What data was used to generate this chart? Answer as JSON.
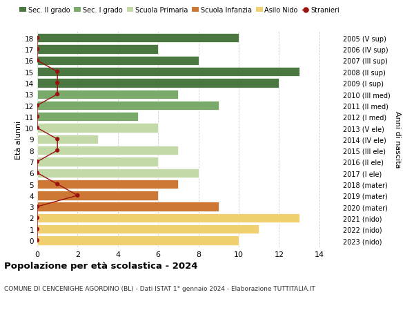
{
  "ages": [
    18,
    17,
    16,
    15,
    14,
    13,
    12,
    11,
    10,
    9,
    8,
    7,
    6,
    5,
    4,
    3,
    2,
    1,
    0
  ],
  "years": [
    "2005 (V sup)",
    "2006 (IV sup)",
    "2007 (III sup)",
    "2008 (II sup)",
    "2009 (I sup)",
    "2010 (III med)",
    "2011 (II med)",
    "2012 (I med)",
    "2013 (V ele)",
    "2014 (IV ele)",
    "2015 (III ele)",
    "2016 (II ele)",
    "2017 (I ele)",
    "2018 (mater)",
    "2019 (mater)",
    "2020 (mater)",
    "2021 (nido)",
    "2022 (nido)",
    "2023 (nido)"
  ],
  "bar_values": [
    10,
    6,
    8,
    13,
    12,
    7,
    9,
    5,
    6,
    3,
    7,
    6,
    8,
    7,
    6,
    9,
    13,
    11,
    10
  ],
  "bar_colors": [
    "#4a7840",
    "#4a7840",
    "#4a7840",
    "#4a7840",
    "#4a7840",
    "#7aaa6a",
    "#7aaa6a",
    "#7aaa6a",
    "#c4d9a8",
    "#c4d9a8",
    "#c4d9a8",
    "#c4d9a8",
    "#c4d9a8",
    "#cc7733",
    "#cc7733",
    "#cc7733",
    "#f0d070",
    "#f0d070",
    "#f0d070"
  ],
  "stranieri_values": [
    0,
    0,
    0,
    1,
    1,
    1,
    0,
    0,
    0,
    1,
    1,
    0,
    0,
    1,
    2,
    0,
    0,
    0,
    0
  ],
  "stranieri_color": "#991111",
  "legend_labels": [
    "Sec. II grado",
    "Sec. I grado",
    "Scuola Primaria",
    "Scuola Infanzia",
    "Asilo Nido",
    "Stranieri"
  ],
  "legend_colors": [
    "#4a7840",
    "#7aaa6a",
    "#c4d9a8",
    "#cc7733",
    "#f0d070",
    "#991111"
  ],
  "ylabel_left": "Età alunni",
  "ylabel_right": "Anni di nascita",
  "title": "Popolazione per età scolastica - 2024",
  "subtitle": "COMUNE DI CENCENIGHE AGORDINO (BL) - Dati ISTAT 1° gennaio 2024 - Elaborazione TUTTITALIA.IT",
  "xlim": [
    0,
    15
  ],
  "xticks": [
    0,
    2,
    4,
    6,
    8,
    10,
    12,
    14
  ],
  "background_color": "#ffffff",
  "grid_color": "#cccccc",
  "bar_height": 0.82
}
